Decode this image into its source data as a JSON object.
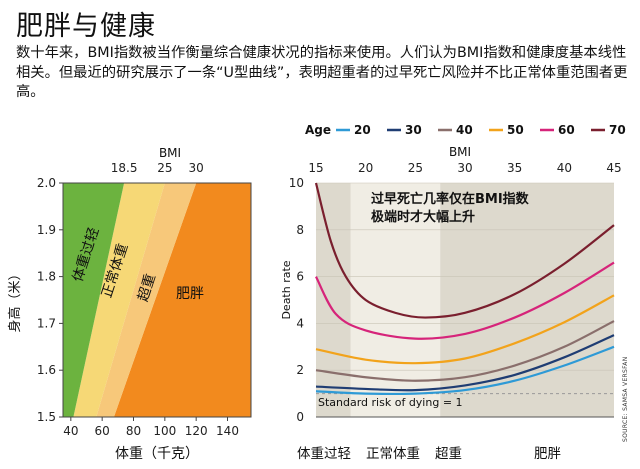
{
  "header": {
    "title": "肥胖与健康",
    "intro": "数十年来，BMI指数被当作衡量综合健康状况的指标来使用。人们认为BMI指数和健康度基本线性相关。但最近的研究展示了一条“U型曲线”，表明超重者的过早死亡风险并不比正常体重范围者更高。"
  },
  "colors": {
    "underweight": "#6cb33f",
    "normal": "#f6d876",
    "overweight": "#f7c87a",
    "obese": "#f28a1e",
    "right_bg_light": "#f0ede4",
    "right_bg_dark": "#ddd9cd"
  },
  "chart_data": [
    {
      "type": "area",
      "title": "",
      "top_axis_label": "BMI",
      "top_ticks": [
        "18.5",
        "25",
        "30"
      ],
      "bmi_boundaries": [
        18.5,
        25,
        30
      ],
      "xlabel": "体重（千克）",
      "ylabel": "身高（米）",
      "x_ticks": [
        40,
        60,
        80,
        100,
        120,
        140
      ],
      "y_ticks": [
        "1.5",
        "1.6",
        "1.7",
        "1.8",
        "1.9",
        "2.0"
      ],
      "xlim": [
        35,
        155
      ],
      "ylim": [
        1.5,
        2.0
      ],
      "regions": [
        {
          "name": "体重过轻",
          "color": "#6cb33f"
        },
        {
          "name": "正常体重",
          "color": "#f6d876"
        },
        {
          "name": "超重",
          "color": "#f7c87a"
        },
        {
          "name": "肥胖",
          "color": "#f28a1e"
        }
      ]
    },
    {
      "type": "line",
      "title": "过早死亡几率仅在BMI指数极端时才大幅上升",
      "xlabel": "BMI",
      "ylabel": "Death rate",
      "x_ticks": [
        15,
        20,
        25,
        30,
        35,
        40,
        45
      ],
      "y_ticks": [
        0,
        2,
        4,
        6,
        8,
        10
      ],
      "xlim": [
        15,
        45
      ],
      "ylim": [
        0,
        10
      ],
      "legend_title": "Age",
      "reference_line": {
        "y": 1,
        "label": "Standard risk of dying = 1"
      },
      "categories_bottom": [
        "体重过轻",
        "正常体重",
        "超重",
        "肥胖"
      ],
      "series": [
        {
          "name": "20",
          "color": "#2e9ad6",
          "points": [
            [
              15,
              1.1
            ],
            [
              20,
              1.0
            ],
            [
              25,
              1.0
            ],
            [
              30,
              1.15
            ],
            [
              35,
              1.55
            ],
            [
              40,
              2.2
            ],
            [
              45,
              3.0
            ]
          ]
        },
        {
          "name": "30",
          "color": "#1f3d73",
          "points": [
            [
              15,
              1.3
            ],
            [
              20,
              1.2
            ],
            [
              25,
              1.15
            ],
            [
              30,
              1.35
            ],
            [
              35,
              1.8
            ],
            [
              40,
              2.55
            ],
            [
              45,
              3.5
            ]
          ]
        },
        {
          "name": "40",
          "color": "#8a6f6c",
          "points": [
            [
              15,
              2.0
            ],
            [
              20,
              1.7
            ],
            [
              25,
              1.55
            ],
            [
              30,
              1.7
            ],
            [
              35,
              2.2
            ],
            [
              40,
              3.0
            ],
            [
              45,
              4.1
            ]
          ]
        },
        {
          "name": "50",
          "color": "#f2a31b",
          "points": [
            [
              15,
              2.9
            ],
            [
              20,
              2.45
            ],
            [
              25,
              2.3
            ],
            [
              30,
              2.5
            ],
            [
              35,
              3.15
            ],
            [
              40,
              4.05
            ],
            [
              45,
              5.2
            ]
          ]
        },
        {
          "name": "60",
          "color": "#d6247a",
          "points": [
            [
              15,
              6.0
            ],
            [
              17,
              4.4
            ],
            [
              20,
              3.7
            ],
            [
              25,
              3.35
            ],
            [
              30,
              3.55
            ],
            [
              35,
              4.25
            ],
            [
              40,
              5.3
            ],
            [
              45,
              6.6
            ]
          ]
        },
        {
          "name": "70",
          "color": "#7a1f2e",
          "points": [
            [
              15,
              10.0
            ],
            [
              16.5,
              7.5
            ],
            [
              18,
              6.0
            ],
            [
              20,
              5.0
            ],
            [
              23,
              4.45
            ],
            [
              26,
              4.25
            ],
            [
              30,
              4.45
            ],
            [
              35,
              5.25
            ],
            [
              40,
              6.55
            ],
            [
              45,
              8.2
            ]
          ]
        }
      ]
    }
  ]
}
